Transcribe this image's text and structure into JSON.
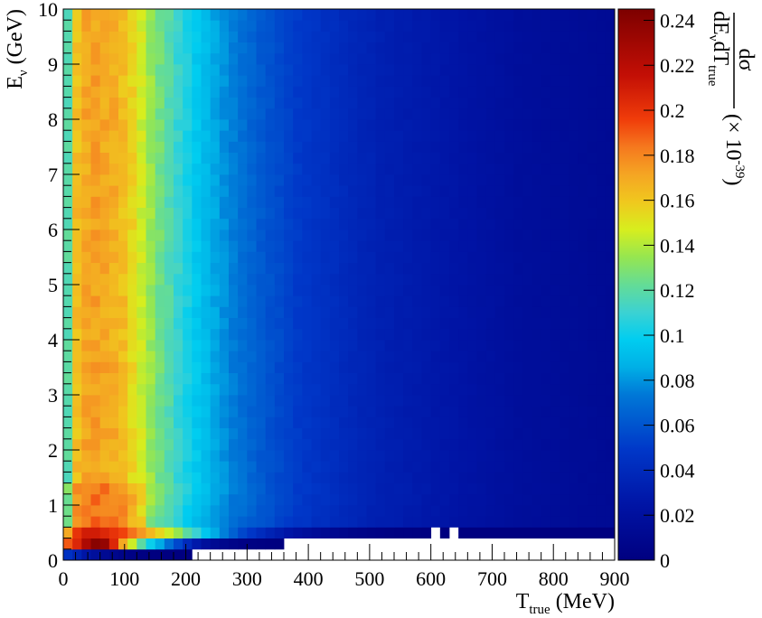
{
  "chart_data": {
    "type": "heatmap",
    "title": "",
    "x_axis": {
      "label_main": "T",
      "label_sub": "true",
      "label_unit": " (MeV)",
      "range": [
        0,
        900
      ],
      "ticks": [
        0,
        100,
        200,
        300,
        400,
        500,
        600,
        700,
        800,
        900
      ],
      "tick_labels": [
        "0",
        "100",
        "200",
        "300",
        "400",
        "500",
        "600",
        "700",
        "800",
        "900"
      ]
    },
    "y_axis": {
      "label_main": "E",
      "label_sub": "ν",
      "label_unit": " (GeV)",
      "range": [
        0,
        10
      ],
      "ticks": [
        0,
        1,
        2,
        3,
        4,
        5,
        6,
        7,
        8,
        9,
        10
      ],
      "tick_labels": [
        "0",
        "1",
        "2",
        "3",
        "4",
        "5",
        "6",
        "7",
        "8",
        "9",
        "10"
      ]
    },
    "colorbar": {
      "range": [
        0,
        0.245
      ],
      "ticks": [
        0,
        0.02,
        0.04,
        0.06,
        0.08,
        0.1,
        0.12,
        0.14,
        0.16,
        0.18,
        0.2,
        0.22,
        0.24
      ],
      "tick_labels": [
        "0",
        "0.02",
        "0.04",
        "0.06",
        "0.08",
        "0.1",
        "0.12",
        "0.14",
        "0.16",
        "0.18",
        "0.2",
        "0.22",
        "0.24"
      ],
      "label_numerator": "dσ",
      "label_den_d": "dE",
      "label_den_nu": "ν",
      "label_den_dt": "dT",
      "label_den_true": "true",
      "label_scale": "(× 10",
      "label_exp": "-39",
      "label_close": ")"
    },
    "bins": {
      "x_width": 15,
      "y_width": 0.2
    },
    "column_profile": {
      "x_center": [
        7.5,
        22.5,
        37.5,
        52.5,
        67.5,
        82.5,
        97.5,
        112.5,
        127.5,
        142.5,
        157.5,
        172.5,
        187.5,
        202.5,
        217.5,
        232.5,
        247.5,
        262.5,
        277.5,
        292.5,
        307.5,
        322.5,
        337.5,
        352.5,
        367.5,
        382.5,
        397.5,
        412.5,
        427.5,
        442.5,
        457.5,
        472.5,
        487.5,
        502.5,
        517.5,
        532.5,
        547.5,
        562.5,
        577.5,
        592.5,
        607.5,
        622.5,
        637.5,
        652.5,
        667.5,
        682.5,
        697.5,
        712.5,
        727.5,
        742.5,
        757.5,
        772.5,
        787.5,
        802.5,
        817.5,
        832.5,
        847.5,
        862.5,
        877.5,
        892.5
      ],
      "value_at_high_E": [
        0.118,
        0.163,
        0.17,
        0.172,
        0.17,
        0.168,
        0.163,
        0.155,
        0.145,
        0.135,
        0.126,
        0.118,
        0.11,
        0.103,
        0.096,
        0.09,
        0.084,
        0.079,
        0.074,
        0.07,
        0.066,
        0.062,
        0.059,
        0.056,
        0.053,
        0.05,
        0.048,
        0.046,
        0.044,
        0.042,
        0.04,
        0.038,
        0.036,
        0.035,
        0.033,
        0.032,
        0.031,
        0.03,
        0.029,
        0.028,
        0.027,
        0.026,
        0.025,
        0.024,
        0.023,
        0.022,
        0.021,
        0.02,
        0.019,
        0.018,
        0.0175,
        0.017,
        0.0165,
        0.016,
        0.0155,
        0.015,
        0.0145,
        0.014,
        0.0135,
        0.013
      ]
    },
    "low_energy_rows": [
      {
        "E_center": 0.1,
        "values": [
          0.045,
          0.035,
          0.025,
          0.018,
          0.012,
          0.008,
          0.005,
          0.003,
          0.001,
          0.0006,
          0.0003,
          0.0001,
          0.0001,
          0.0001
        ]
      },
      {
        "E_center": 0.3,
        "values": [
          0.19,
          0.205,
          0.225,
          0.24,
          0.235,
          0.205,
          0.17,
          0.145,
          0.12,
          0.1,
          0.085,
          0.07,
          0.055,
          0.04,
          0.028,
          0.018,
          0.012,
          0.008,
          0.005,
          0.003,
          0.002,
          0.001,
          0.0006,
          0.0002
        ]
      },
      {
        "E_center": 0.5,
        "values": [
          0.17,
          0.2,
          0.21,
          0.21,
          0.205,
          0.2,
          0.195,
          0.185,
          0.175,
          0.165,
          0.155,
          0.145,
          0.135,
          0.12,
          0.11,
          0.095,
          0.085,
          0.075,
          0.065,
          0.055,
          0.048,
          0.041,
          0.035,
          0.03,
          0.025,
          0.021,
          0.018,
          0.015,
          0.012,
          0.01,
          0.008,
          0.006,
          0.005,
          0.004,
          0.003,
          0.002,
          0.0015,
          0.001,
          0.0008,
          0.0005,
          null,
          0.0003,
          null,
          0.0001,
          0.0001,
          0.0001,
          0.0001,
          0.0001,
          0.0001,
          0.0001,
          0.0001,
          0.0001,
          0.0001,
          0.0001,
          0.0001,
          0.0001,
          0.0001,
          0.0001,
          0.0001,
          0.0001
        ]
      }
    ],
    "empty_region_note_bins": {
      "row_0_max_col": 13,
      "row_1_max_col": 23
    }
  }
}
